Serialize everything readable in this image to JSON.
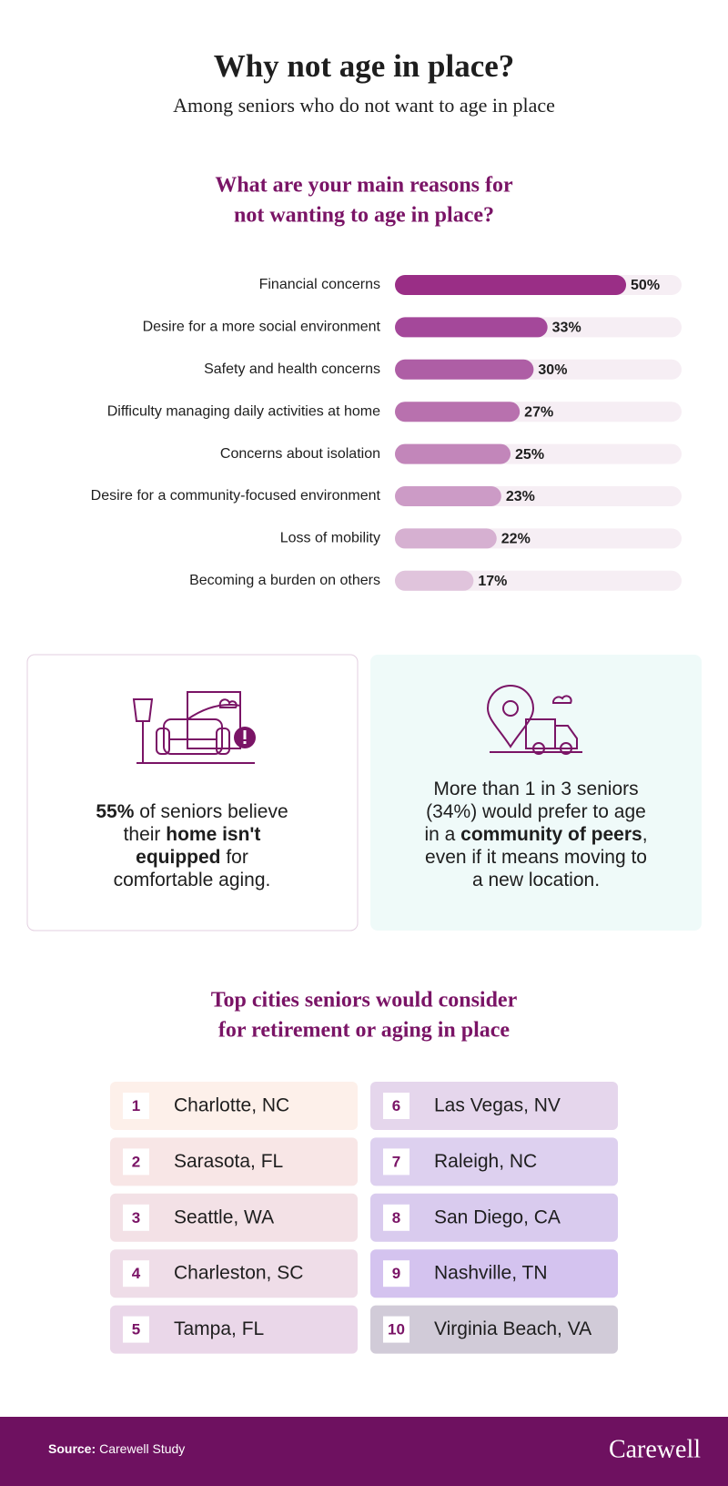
{
  "header": {
    "title": "Why not age in place?",
    "subtitle": "Among seniors who do not want to age in place"
  },
  "chart_data": {
    "type": "bar",
    "orientation": "horizontal",
    "title": [
      "What are your main reasons for",
      "not wanting to age in place?"
    ],
    "categories": [
      "Financial concerns",
      "Desire for a more social environment",
      "Safety and health concerns",
      "Difficulty managing daily activities at home",
      "Concerns about isolation",
      "Desire for a community-focused environment",
      "Loss of mobility",
      "Becoming a burden on others"
    ],
    "values": [
      50,
      33,
      30,
      27,
      25,
      23,
      22,
      17
    ],
    "value_labels": [
      "50%",
      "33%",
      "30%",
      "27%",
      "25%",
      "23%",
      "22%",
      "17%"
    ],
    "colors": [
      "#9a2e86",
      "#a4489a",
      "#ae5ea5",
      "#b871ae",
      "#c286ba",
      "#cc9bc6",
      "#d6b0d1",
      "#e0c4dc"
    ],
    "track_color": "#f6eef4",
    "xlim": [
      0,
      62
    ]
  },
  "stats": [
    {
      "lines": [
        [
          {
            "text": "55%",
            "bold": true
          },
          {
            "text": " of seniors believe"
          }
        ],
        [
          {
            "text": "their "
          },
          {
            "text": "home isn't",
            "bold": true
          }
        ],
        [
          {
            "text": "equipped",
            "bold": true
          },
          {
            "text": " for"
          }
        ],
        [
          {
            "text": "comfortable aging."
          }
        ]
      ]
    },
    {
      "lines": [
        [
          {
            "text": "More than 1 in 3 seniors"
          }
        ],
        [
          {
            "text": "(34%) would prefer to age"
          }
        ],
        [
          {
            "text": "in a "
          },
          {
            "text": "community of peers",
            "bold": true
          },
          {
            "text": ","
          }
        ],
        [
          {
            "text": "even if it means moving to"
          }
        ],
        [
          {
            "text": "a new location."
          }
        ]
      ]
    }
  ],
  "cities": {
    "title": [
      "Top cities seniors would consider",
      "for retirement or aging in place"
    ],
    "items": [
      {
        "rank": 1,
        "name": "Charlotte, NC"
      },
      {
        "rank": 2,
        "name": "Sarasota, FL"
      },
      {
        "rank": 3,
        "name": "Seattle, WA"
      },
      {
        "rank": 4,
        "name": "Charleston, SC"
      },
      {
        "rank": 5,
        "name": "Tampa, FL"
      },
      {
        "rank": 6,
        "name": "Las Vegas, NV"
      },
      {
        "rank": 7,
        "name": "Raleigh, NC"
      },
      {
        "rank": 8,
        "name": "San Diego, CA"
      },
      {
        "rank": 9,
        "name": "Nashville, TN"
      },
      {
        "rank": 10,
        "name": "Virginia Beach, VA"
      }
    ]
  },
  "footer": {
    "source_label": "Source:",
    "source": "Carewell Study",
    "brand": "Carewell"
  }
}
